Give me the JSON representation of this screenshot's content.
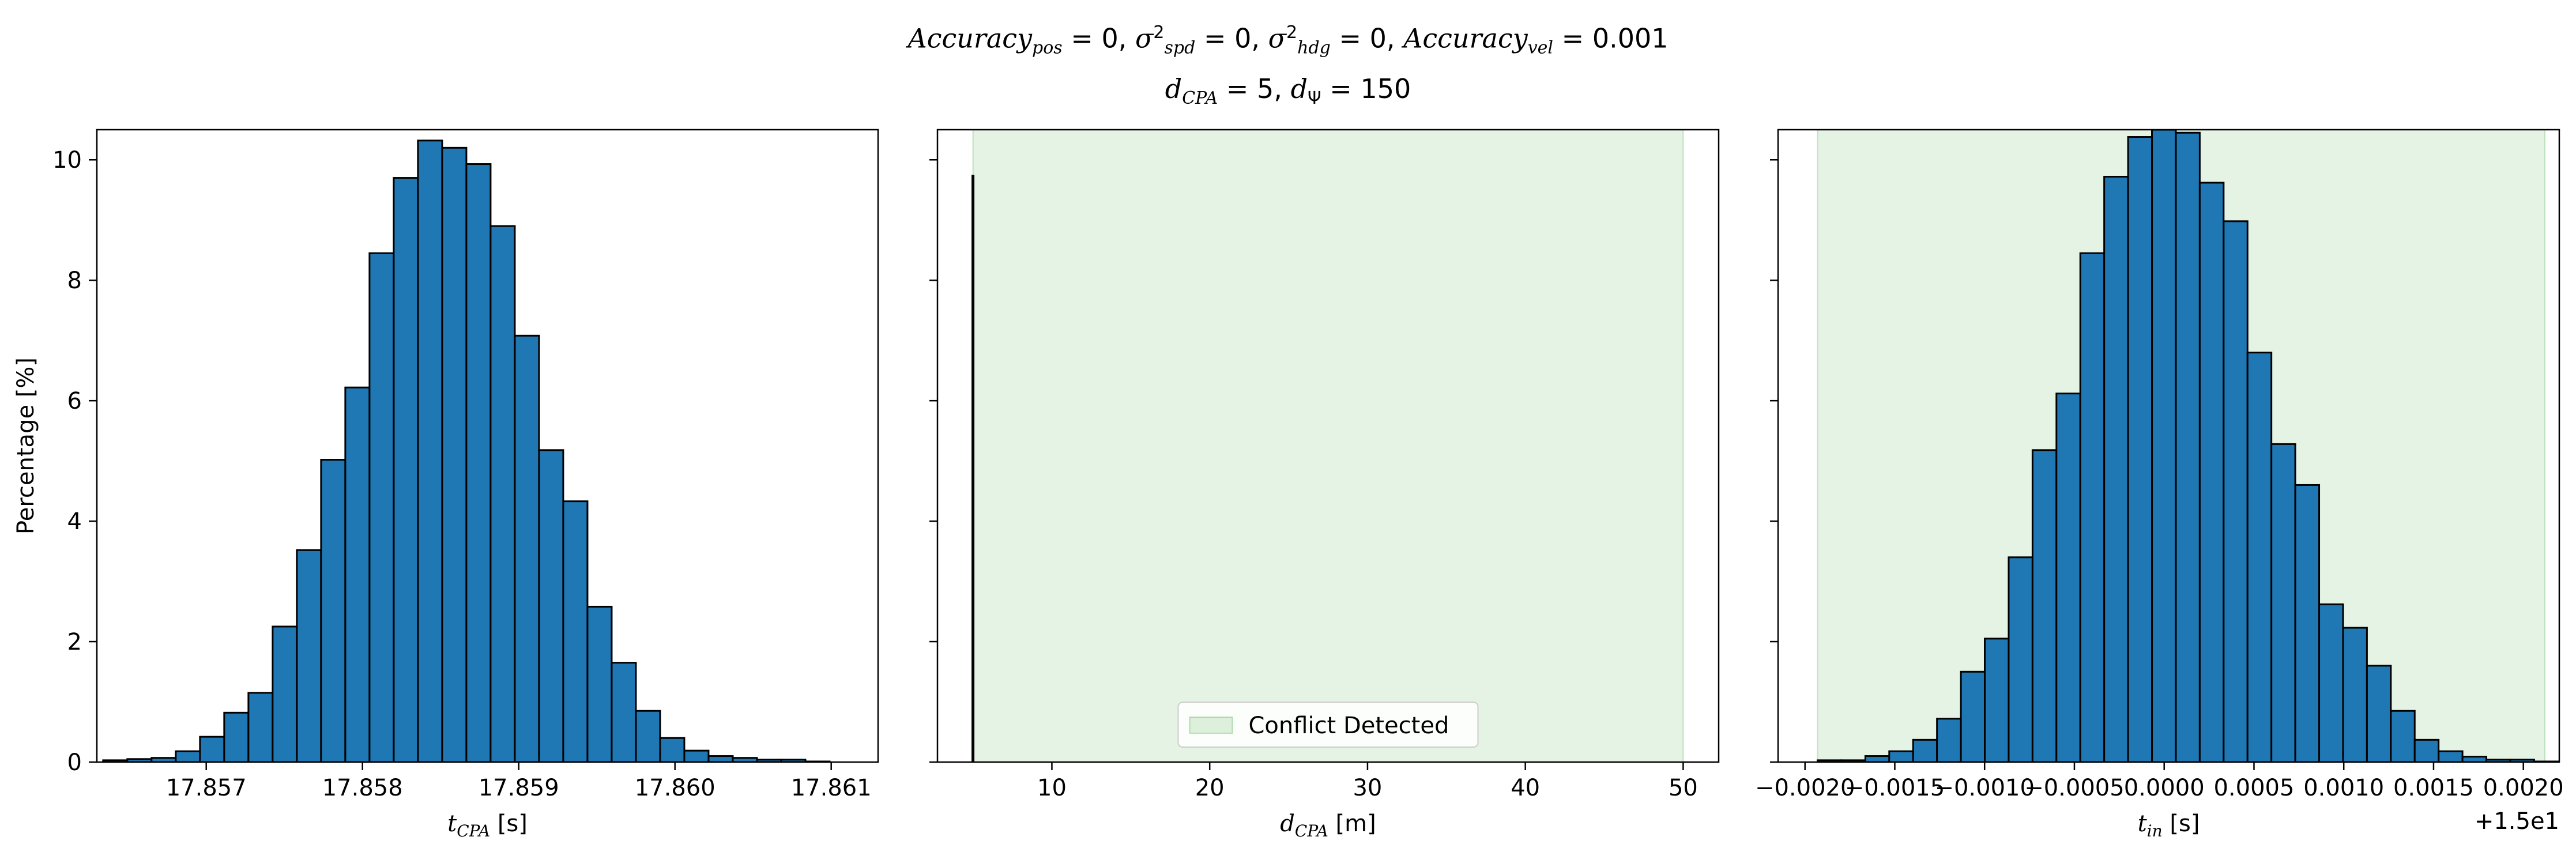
{
  "figure": {
    "title_line1": [
      {
        "t": "Accuracy",
        "it": true
      },
      {
        "t": "pos",
        "sub": true,
        "it": true
      },
      {
        "t": " = 0, "
      },
      {
        "t": "σ",
        "it": true
      },
      {
        "t": "2",
        "sup": true
      },
      {
        "t": "spd",
        "sub": true,
        "it": true
      },
      {
        "t": " = 0, "
      },
      {
        "t": "σ",
        "it": true
      },
      {
        "t": "2",
        "sup": true
      },
      {
        "t": "hdg",
        "sub": true,
        "it": true
      },
      {
        "t": " = 0, "
      },
      {
        "t": "Accuracy",
        "it": true
      },
      {
        "t": "vel",
        "sub": true,
        "it": true
      },
      {
        "t": " = 0.001"
      }
    ],
    "title_line2": [
      {
        "t": "d",
        "it": true
      },
      {
        "t": "CPA",
        "sub": true,
        "it": true
      },
      {
        "t": " = 5, "
      },
      {
        "t": "d",
        "it": true
      },
      {
        "t": "Ψ",
        "sub": true
      },
      {
        "t": " = 150"
      }
    ],
    "colors": {
      "bar_fill": "#1f77b4",
      "bar_edge": "#000000",
      "span_fill": "#2ca02c",
      "span_opacity": 0.12
    }
  },
  "chart_data": [
    {
      "type": "bar",
      "histogram": true,
      "xlabel_main": "t",
      "xlabel_sub": "CPA",
      "xlabel_unit": " [s]",
      "ylabel": "Percentage [%]",
      "xlim": [
        17.8563,
        17.8613
      ],
      "ylim": [
        0,
        10.5
      ],
      "x_ticks": [
        17.857,
        17.858,
        17.859,
        17.86,
        17.861
      ],
      "x_tick_labels": [
        "17.857",
        "17.858",
        "17.859",
        "17.860",
        "17.861"
      ],
      "y_ticks": [
        0,
        2,
        4,
        6,
        8,
        10
      ],
      "y_tick_labels": [
        "0",
        "2",
        "4",
        "6",
        "8",
        "10"
      ],
      "bin_start": 17.85634,
      "bin_width": 0.000155,
      "values": [
        0.03,
        0.05,
        0.07,
        0.18,
        0.42,
        0.82,
        1.15,
        2.25,
        3.52,
        5.02,
        6.22,
        8.45,
        9.7,
        10.32,
        10.2,
        9.93,
        8.9,
        7.08,
        5.18,
        4.33,
        2.58,
        1.65,
        0.85,
        0.4,
        0.19,
        0.1,
        0.07,
        0.04,
        0.04,
        0.01
      ],
      "shade": null,
      "legend": null
    },
    {
      "type": "bar",
      "histogram": true,
      "xlabel_main": "d",
      "xlabel_sub": "CPA",
      "xlabel_unit": " [m]",
      "ylabel": "",
      "xlim": [
        2.75,
        52.25
      ],
      "ylim": [
        0,
        10.5
      ],
      "x_ticks": [
        10,
        20,
        30,
        40,
        50
      ],
      "x_tick_labels": [
        "10",
        "20",
        "30",
        "40",
        "50"
      ],
      "y_ticks": [
        0,
        2,
        4,
        6,
        8,
        10
      ],
      "y_tick_labels": [
        "",
        "",
        "",
        "",
        "",
        ""
      ],
      "spike_x": 5.0,
      "spike_value": 9.75,
      "shade": [
        5,
        50
      ],
      "legend": {
        "label": "Conflict Detected",
        "placement": "lower center"
      }
    },
    {
      "type": "bar",
      "histogram": true,
      "xlabel_main": "t",
      "xlabel_sub": "in",
      "xlabel_unit": " [s]",
      "ylabel": "",
      "offset_text": "+1.5e1",
      "xlim": [
        -0.00215,
        0.0022
      ],
      "ylim": [
        0,
        10.5
      ],
      "x_ticks": [
        -0.002,
        -0.0015,
        -0.001,
        -0.0005,
        0.0,
        0.0005,
        0.001,
        0.0015,
        0.002
      ],
      "x_tick_labels": [
        "−0.0020",
        "−0.0015",
        "−0.0010",
        "−0.0005",
        "0.0000",
        "0.0005",
        "0.0010",
        "0.0015",
        "0.0020"
      ],
      "y_ticks": [
        0,
        2,
        4,
        6,
        8,
        10
      ],
      "y_tick_labels": [
        "",
        "",
        "",
        "",
        "",
        ""
      ],
      "bin_start": -0.00193,
      "bin_width": 0.000133,
      "values": [
        0.03,
        0.03,
        0.1,
        0.18,
        0.37,
        0.72,
        1.5,
        2.05,
        3.4,
        5.18,
        6.12,
        8.45,
        9.72,
        10.38,
        10.5,
        10.45,
        9.62,
        8.98,
        6.8,
        5.28,
        4.6,
        2.62,
        2.23,
        1.6,
        0.85,
        0.37,
        0.18,
        0.09,
        0.04,
        0.04,
        0.01
      ],
      "shade": [
        -0.00193,
        0.00212
      ],
      "legend": null
    }
  ]
}
